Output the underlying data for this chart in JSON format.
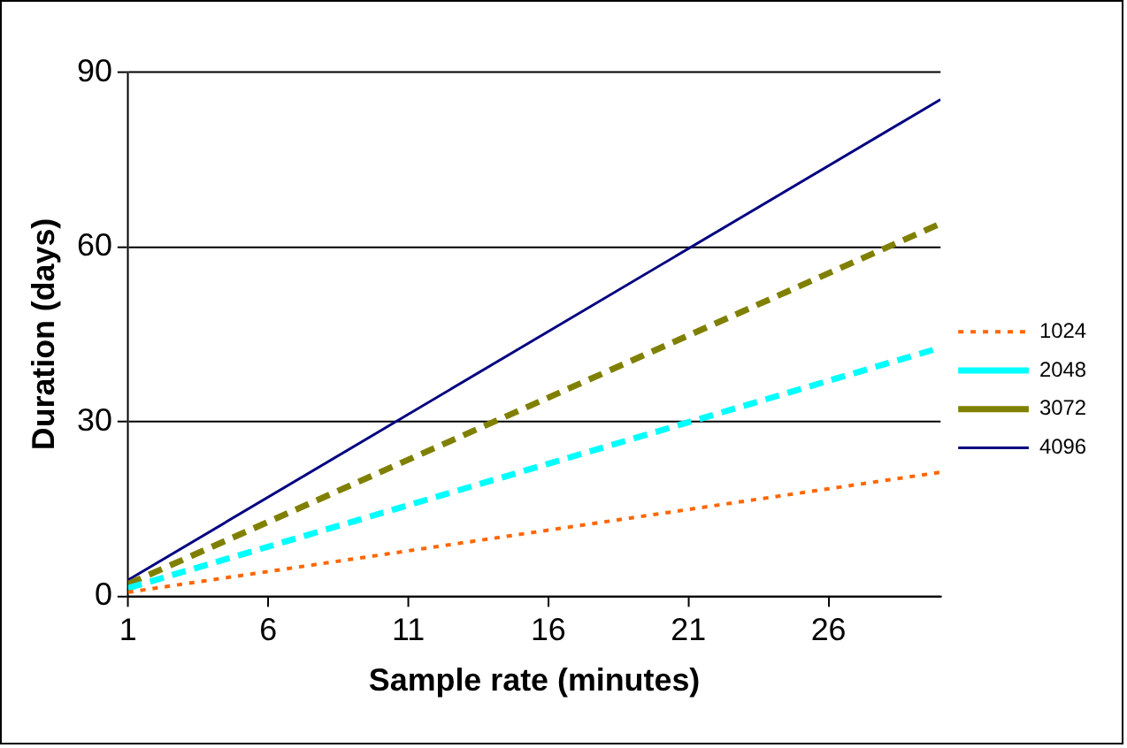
{
  "chart_data": {
    "type": "line",
    "xlabel": "Sample rate (minutes)",
    "ylabel": "Duration (days)",
    "x": [
      1,
      30
    ],
    "xlim": [
      1,
      30
    ],
    "xticks": [
      1,
      6,
      11,
      16,
      21,
      26
    ],
    "ylim": [
      0,
      90
    ],
    "yticks": [
      0,
      30,
      60,
      90
    ],
    "grid": "y",
    "legend": "right",
    "marker": "none",
    "series": [
      {
        "name": "1024",
        "color": "#ff6600",
        "line_style": "dotted",
        "values": [
          0.7,
          21.3
        ]
      },
      {
        "name": "2048",
        "color": "#00ffff",
        "line_style": "dashed",
        "values": [
          1.4,
          42.7
        ]
      },
      {
        "name": "3072",
        "color": "#808000",
        "line_style": "dashed",
        "values": [
          2.1,
          64
        ]
      },
      {
        "name": "4096",
        "color": "#000080",
        "line_style": "solid",
        "values": [
          2.8,
          85.3
        ]
      }
    ]
  }
}
